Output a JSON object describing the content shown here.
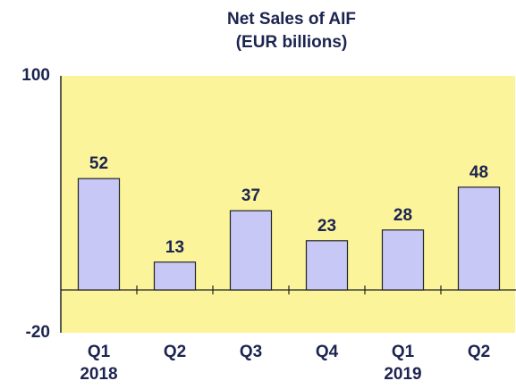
{
  "chart_data": {
    "type": "bar",
    "title": [
      "Net Sales of AIF",
      "(EUR billions)"
    ],
    "categories": [
      [
        "Q1",
        "2018"
      ],
      [
        "Q2"
      ],
      [
        "Q3"
      ],
      [
        "Q4"
      ],
      [
        "Q1",
        "2019"
      ],
      [
        "Q2"
      ]
    ],
    "values": [
      52,
      13,
      37,
      23,
      28,
      48
    ],
    "color": "#c8c8f6",
    "ylim": [
      -20,
      100
    ],
    "yticks": [
      -20,
      100
    ],
    "grid": false
  }
}
